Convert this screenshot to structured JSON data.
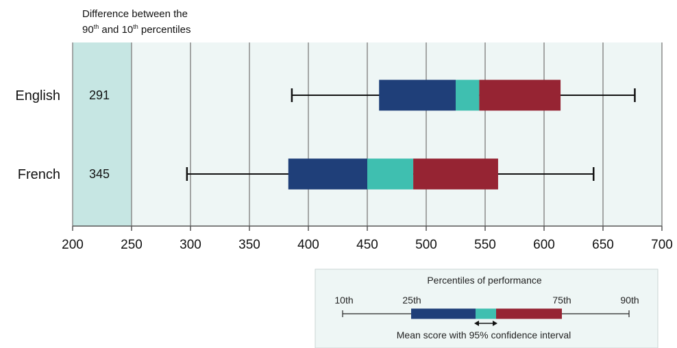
{
  "chart_data": {
    "type": "box",
    "x_axis": {
      "min": 200,
      "max": 700,
      "ticks": [
        200,
        250,
        300,
        350,
        400,
        450,
        500,
        550,
        600,
        650,
        700
      ]
    },
    "difference_column": {
      "title_line1": "Difference between the",
      "title_line2_part1": "90",
      "title_line2_sup1": "th",
      "title_line2_part2": " and 10",
      "title_line2_sup2": "th",
      "title_line2_part3": " percentiles",
      "range": [
        200,
        250
      ]
    },
    "categories": [
      {
        "name": "English",
        "difference": "291",
        "p10": 386,
        "p25": 460,
        "ci_low": 525,
        "ci_high": 545,
        "p75": 614,
        "p90": 677
      },
      {
        "name": "French",
        "difference": "345",
        "p10": 297,
        "p25": 383,
        "ci_low": 450,
        "ci_high": 489,
        "p75": 561,
        "p90": 642
      }
    ],
    "legend": {
      "title": "Percentiles of performance",
      "labels": [
        "10th",
        "25th",
        "75th",
        "90th"
      ],
      "caption": "Mean score with 95% confidence interval"
    },
    "colors": {
      "p25_to_mean": "#1f3f79",
      "confidence_interval": "#3fbfb0",
      "mean_to_p75": "#962433",
      "plot_background": "#eef6f5",
      "difference_column": "#c6e6e3",
      "gridline": "#8a8a8a",
      "legend_background": "#eef6f5"
    }
  }
}
